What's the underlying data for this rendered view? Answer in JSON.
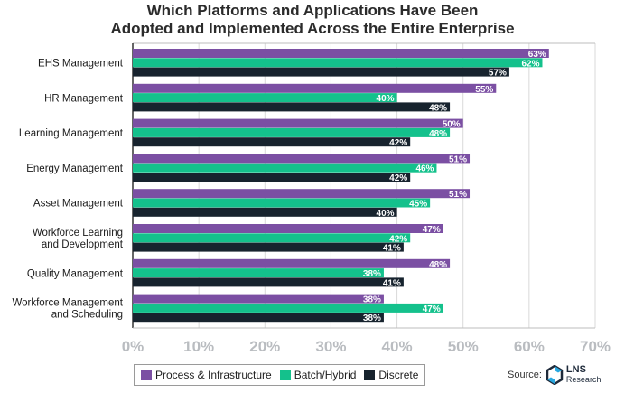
{
  "chart_data": {
    "type": "bar",
    "orientation": "horizontal",
    "title_lines": [
      "Which Platforms and Applications Have Been",
      "Adopted and Implemented Across the Entire Enterprise"
    ],
    "categories": [
      [
        "EHS Management"
      ],
      [
        "HR Management"
      ],
      [
        "Learning Management"
      ],
      [
        "Energy Management"
      ],
      [
        "Asset Management"
      ],
      [
        "Workforce Learning",
        "and Development"
      ],
      [
        "Quality Management"
      ],
      [
        "Workforce Management",
        "and Scheduling"
      ]
    ],
    "series": [
      {
        "name": "Process & Infrastructure",
        "color": "#7b4fa3",
        "values": [
          63,
          55,
          50,
          51,
          51,
          47,
          48,
          38
        ]
      },
      {
        "name": "Batch/Hybrid",
        "color": "#14c18c",
        "values": [
          62,
          40,
          48,
          46,
          45,
          42,
          38,
          47
        ]
      },
      {
        "name": "Discrete",
        "color": "#17232e",
        "values": [
          57,
          48,
          42,
          42,
          40,
          41,
          41,
          38
        ]
      }
    ],
    "xlim": [
      0,
      70
    ],
    "x_ticks": [
      0,
      10,
      20,
      30,
      40,
      50,
      60,
      70
    ],
    "tick_suffix": "%",
    "value_suffix": "%",
    "grid": true,
    "legend_position": "bottom"
  },
  "source": {
    "label": "Source:",
    "logo_line1": "LNS",
    "logo_line2": "Research"
  }
}
